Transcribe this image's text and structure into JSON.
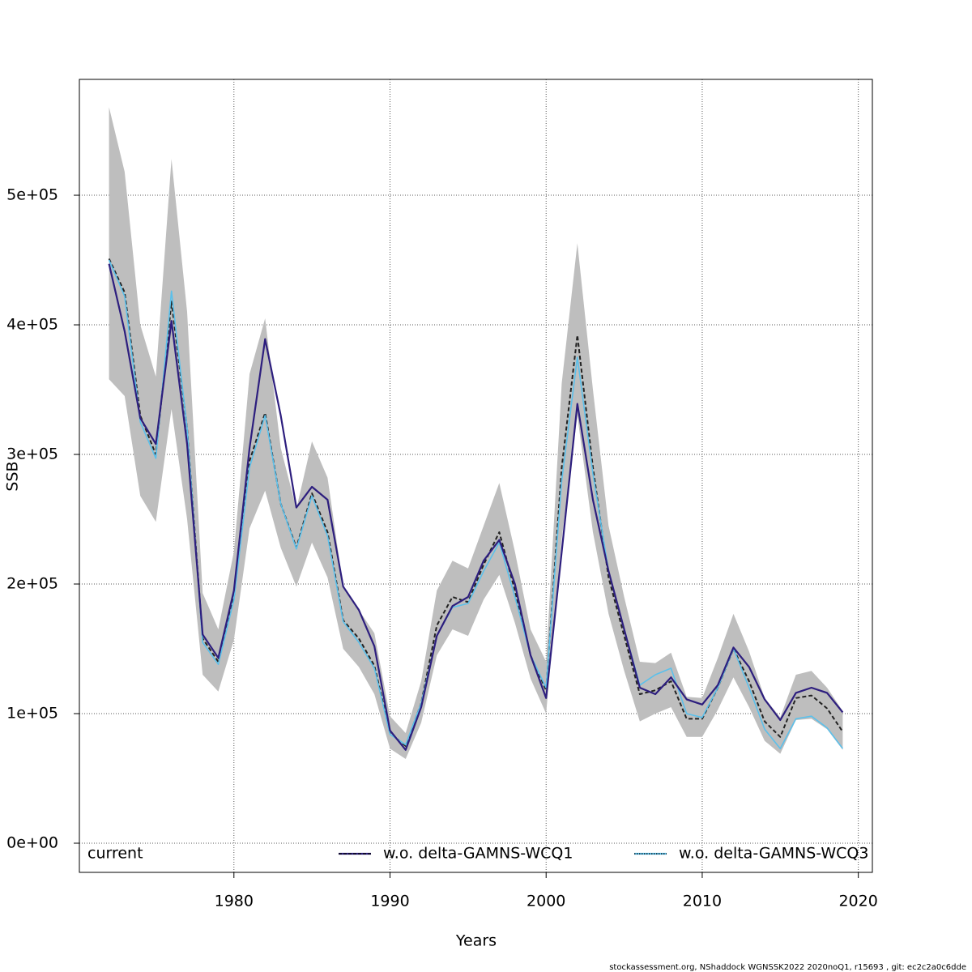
{
  "chart_data": {
    "type": "line",
    "x_label": "Years",
    "y_label": "SSB",
    "footnote": "stockassessment.org, NShaddock  WGNSSK2022  2020noQ1, r15693 , git: ec2c2a0c6dde",
    "x": [
      1972,
      1973,
      1974,
      1975,
      1976,
      1977,
      1978,
      1979,
      1980,
      1981,
      1982,
      1983,
      1984,
      1985,
      1986,
      1987,
      1988,
      1989,
      1990,
      1991,
      1992,
      1993,
      1994,
      1995,
      1996,
      1997,
      1998,
      1999,
      2000,
      2001,
      2002,
      2003,
      2004,
      2005,
      2006,
      2007,
      2008,
      2009,
      2010,
      2011,
      2012,
      2013,
      2014,
      2015,
      2016,
      2017,
      2018,
      2019
    ],
    "xlim": [
      1970.1,
      2020.9
    ],
    "ylim": [
      -22500,
      589400
    ],
    "xticks": [
      1980,
      1990,
      2000,
      2010,
      2020
    ],
    "yticks": [
      {
        "value": 0,
        "label": "0e+00"
      },
      {
        "value": 100000,
        "label": "1e+05"
      },
      {
        "value": 200000,
        "label": "2e+05"
      },
      {
        "value": 300000,
        "label": "3e+05"
      },
      {
        "value": 400000,
        "label": "4e+05"
      },
      {
        "value": 500000,
        "label": "5e+05"
      }
    ],
    "grid": true,
    "legend": "bottom",
    "series": [
      {
        "name": "current",
        "color": "#222222",
        "band_color": "#bebebe",
        "values": [
          451000,
          425000,
          330000,
          300000,
          418000,
          320000,
          158000,
          140000,
          190000,
          295000,
          332000,
          262000,
          228000,
          270000,
          240000,
          172000,
          158000,
          137000,
          85000,
          75000,
          108000,
          168000,
          190000,
          186000,
          215000,
          240000,
          195000,
          145000,
          118000,
          290000,
          392000,
          290000,
          205000,
          160000,
          115000,
          118000,
          125000,
          96000,
          96000,
          120000,
          150000,
          125000,
          94000,
          82000,
          112000,
          114000,
          104000,
          86000
        ],
        "upper": [
          568000,
          518000,
          400000,
          360000,
          528000,
          410000,
          193000,
          165000,
          225000,
          362000,
          405000,
          305000,
          258000,
          310000,
          282000,
          198000,
          180000,
          162000,
          98000,
          85000,
          125000,
          195000,
          218000,
          212000,
          245000,
          278000,
          225000,
          165000,
          140000,
          355000,
          463000,
          350000,
          245000,
          190000,
          140000,
          139000,
          147000,
          113000,
          112000,
          143000,
          177000,
          148000,
          112000,
          97000,
          130000,
          133000,
          120000,
          102000
        ],
        "lower": [
          358000,
          345000,
          268000,
          248000,
          335000,
          250000,
          130000,
          117000,
          157000,
          243000,
          272000,
          228000,
          198000,
          232000,
          205000,
          150000,
          136000,
          115000,
          73000,
          65000,
          93000,
          145000,
          165000,
          160000,
          188000,
          207000,
          170000,
          127000,
          100000,
          235000,
          330000,
          240000,
          177000,
          133000,
          94000,
          100000,
          105000,
          82000,
          82000,
          103000,
          128000,
          105000,
          79000,
          69000,
          95000,
          96000,
          88000,
          72000
        ]
      },
      {
        "name": "w.o. delta-GAMNS-WCQ1",
        "color": "#2d1e7e",
        "values": [
          447000,
          395000,
          328000,
          308000,
          403000,
          308000,
          161000,
          143000,
          195000,
          305000,
          389000,
          330000,
          259000,
          275000,
          265000,
          198000,
          180000,
          152000,
          87000,
          72000,
          105000,
          160000,
          183000,
          190000,
          218000,
          234000,
          200000,
          145000,
          112000,
          225000,
          339000,
          265000,
          210000,
          165000,
          120000,
          115000,
          128000,
          111000,
          107000,
          122000,
          151000,
          136000,
          111000,
          95000,
          116000,
          120000,
          116000,
          101000
        ]
      },
      {
        "name": "w.o. delta-GAMNS-WCQ3",
        "color": "#5bc0eb",
        "values": [
          450000,
          422000,
          325000,
          297000,
          426000,
          320000,
          155000,
          138000,
          188000,
          290000,
          330000,
          262000,
          227000,
          268000,
          237000,
          171000,
          155000,
          135000,
          84000,
          76000,
          108000,
          160000,
          182000,
          185000,
          210000,
          232000,
          190000,
          145000,
          120000,
          280000,
          375000,
          285000,
          210000,
          165000,
          122000,
          130000,
          135000,
          100000,
          97000,
          120000,
          150000,
          120000,
          88000,
          73000,
          96000,
          98000,
          89000,
          73000
        ]
      }
    ]
  }
}
